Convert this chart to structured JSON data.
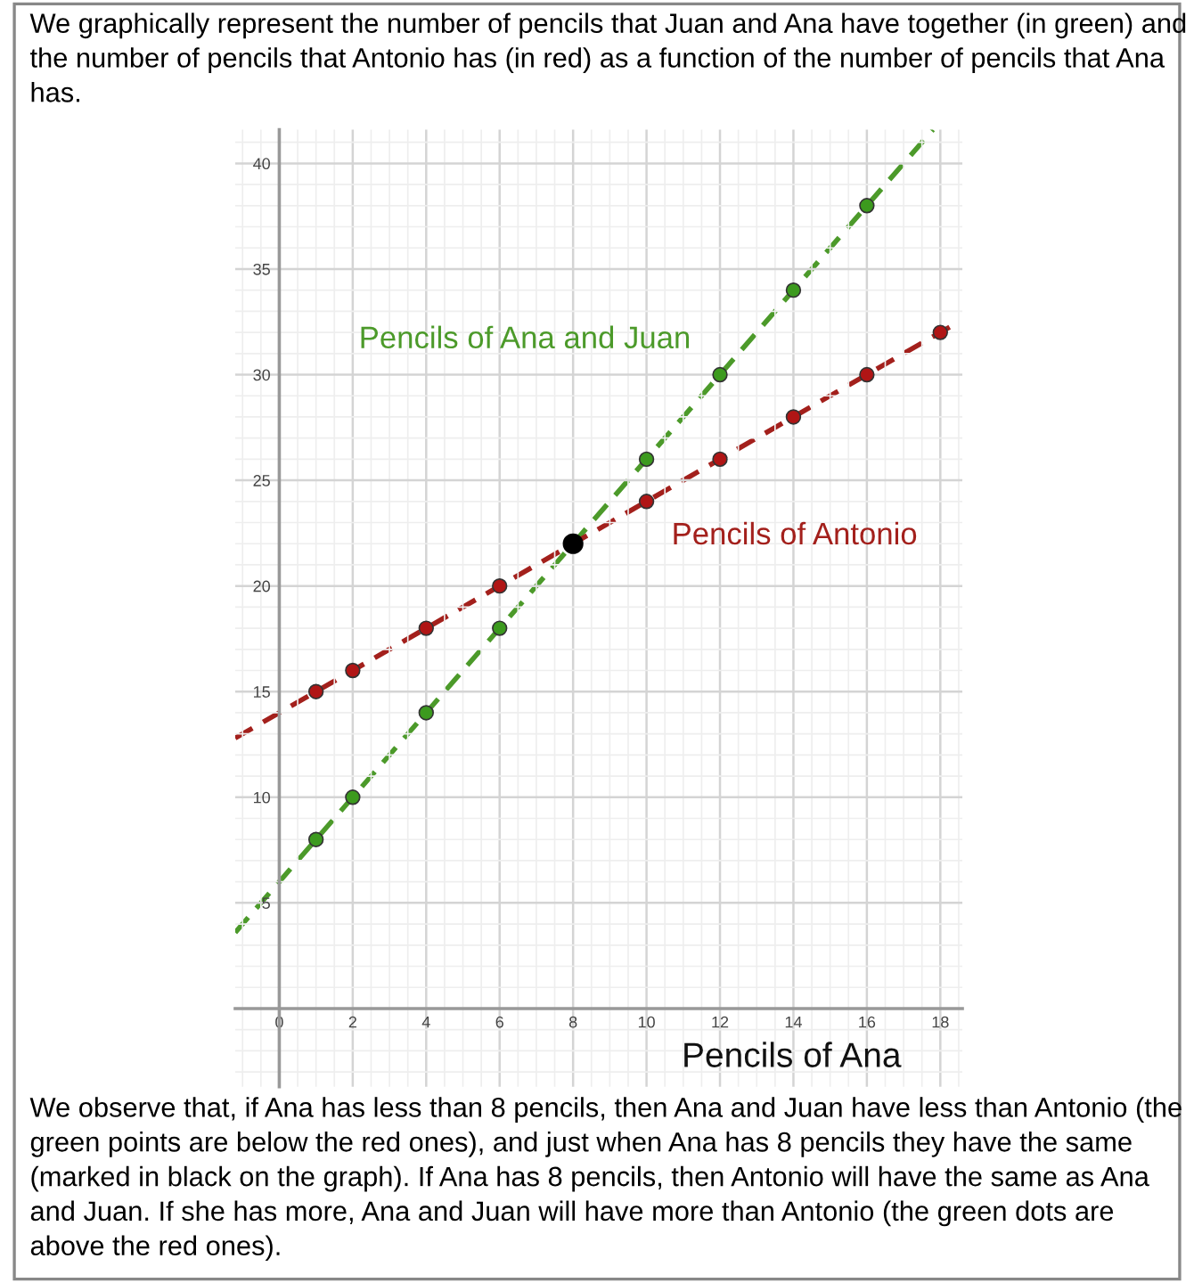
{
  "chart_data": {
    "type": "line",
    "title": "We graphically represent the number of pencils that Juan and Ana have together (in green) and the number of pencils that Antonio has (in red) as a function of the number of pencils that Ana has.",
    "xlabel": "Pencils of Ana",
    "annotations": [
      "We observe that, if Ana has less than 8 pencils, then Ana and Juan have less than Antonio (the green points are below the red ones), and just when Ana has 8 pencils they have the same (marked in black on the graph). If Ana has 8 pencils, then Antonio will have the same as Ana and Juan. If she has more, Ana and Juan will have more than Antonio (the green dots are above the red ones)."
    ],
    "series": [
      {
        "name": "Pencils of Ana and Juan",
        "color": "#4c9a2a",
        "line_style": "dashed",
        "marker": "none",
        "x": [
          -1.2,
          17.8
        ],
        "values": [
          3.6,
          41.6
        ]
      },
      {
        "type": "scatter",
        "color": "#3c9a1e",
        "marker": "circle",
        "x": [
          1,
          2,
          4,
          6,
          10,
          12,
          14,
          16
        ],
        "values": [
          8,
          10,
          14,
          18,
          26,
          30,
          34,
          38
        ]
      },
      {
        "name": "Pencils of Antonio",
        "color": "#a3201c",
        "line_style": "dashed",
        "marker": "none",
        "x": [
          -1.2,
          18.4
        ],
        "values": [
          12.8,
          32.4
        ]
      },
      {
        "type": "scatter",
        "color": "#b01515",
        "marker": "circle",
        "x": [
          1,
          2,
          4,
          6,
          10,
          12,
          14,
          16,
          18
        ],
        "values": [
          15,
          16,
          18,
          20,
          24,
          26,
          28,
          30,
          32
        ]
      },
      {
        "type": "scatter",
        "color": "#000000",
        "marker": "circle",
        "x": [
          8
        ],
        "values": [
          22
        ]
      }
    ],
    "xlim": [
      -1.2,
      18.6
    ],
    "ylim": [
      -3.7,
      41.6
    ],
    "xticks": [
      0,
      2,
      4,
      6,
      8,
      10,
      12,
      14,
      16,
      18
    ],
    "yticks": [
      5,
      10,
      15,
      20,
      25,
      30,
      35,
      40
    ],
    "grid": true
  }
}
